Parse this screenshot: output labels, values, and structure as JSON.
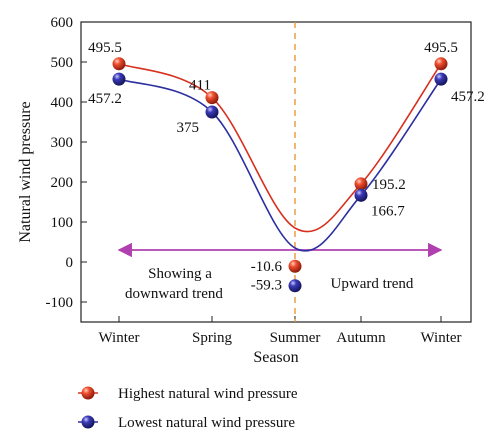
{
  "chart_data": {
    "type": "line",
    "xlabel": "Season",
    "ylabel": "Natural wind pressure",
    "categories": [
      "Winter",
      "Spring",
      "Summer",
      "Autumn",
      "Winter"
    ],
    "ylim": [
      -150,
      600
    ],
    "yticks": [
      -100,
      0,
      100,
      200,
      300,
      400,
      500,
      600
    ],
    "grid": false,
    "legend_position": "bottom",
    "series": [
      {
        "name": "Highest natural wind pressure",
        "color": "#d7301f",
        "values": [
          495.5,
          411,
          -10.6,
          195.2,
          495.5
        ],
        "labels": [
          "495.5",
          "411",
          "-10.6",
          "195.2",
          "495.5"
        ],
        "curve_min_approx": 85
      },
      {
        "name": "Lowest natural wind pressure",
        "color": "#2b2fa0",
        "values": [
          457.2,
          375,
          -59.3,
          166.7,
          457.2
        ],
        "labels": [
          "457.2",
          "375",
          "-59.3",
          "166.7",
          "457.2"
        ],
        "curve_min_approx": 35
      }
    ],
    "annotations": {
      "divider_color": "#e8902a",
      "arrow_color": "#b03fb0",
      "arrow_y": 30,
      "left_text_line1": "Showing a",
      "left_text_line2": "downward trend",
      "right_text": "Upward trend"
    }
  }
}
